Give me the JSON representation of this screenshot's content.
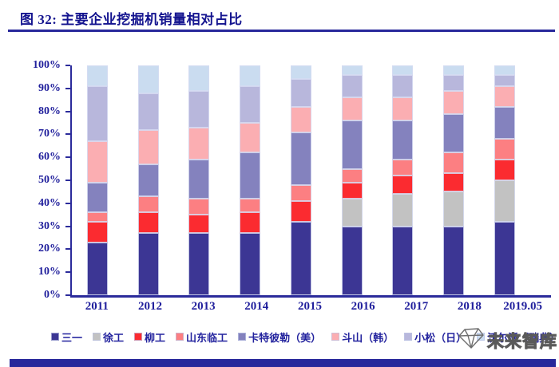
{
  "header": {
    "title": "图 32:  主要企业挖掘机销量相对占比"
  },
  "watermark": {
    "text": "未来智库",
    "icon": "gem-sketch-icon"
  },
  "colors": {
    "title_text": "#14148F",
    "axis_text": "#201F9C",
    "axis_line": "#2B2B9B",
    "rule": "#28289B"
  },
  "chart_data": {
    "type": "bar",
    "stacked": true,
    "percent_stacked": true,
    "grid": false,
    "legend_position": "bottom",
    "ylim": [
      0,
      100
    ],
    "ylabel": "",
    "xlabel": "",
    "y_tick_labels": [
      "100%",
      "90%",
      "80%",
      "70%",
      "60%",
      "50%",
      "40%",
      "30%",
      "20%",
      "10%",
      "0%"
    ],
    "categories": [
      "2011",
      "2012",
      "2013",
      "2014",
      "2015",
      "2016",
      "2017",
      "2018",
      "2019.05"
    ],
    "series": [
      {
        "key": "sany",
        "name": "三一",
        "color": "#3C3694",
        "values": [
          23,
          27,
          27,
          27,
          32,
          30,
          30,
          30,
          32
        ]
      },
      {
        "key": "xcmg",
        "name": "徐工",
        "color": "#C2C2C2",
        "values": [
          0,
          0,
          0,
          0,
          0,
          12,
          14,
          15,
          18
        ]
      },
      {
        "key": "liugong",
        "name": "柳工",
        "color": "#FB2B30",
        "values": [
          9,
          9,
          8,
          9,
          9,
          7,
          8,
          8,
          9
        ]
      },
      {
        "key": "sdlg",
        "name": "山东临工",
        "color": "#FC7F82",
        "values": [
          4,
          7,
          7,
          6,
          7,
          6,
          7,
          9,
          9
        ]
      },
      {
        "key": "caterpillar",
        "name": "卡特彼勒（美）",
        "color": "#8482BE",
        "values": [
          13,
          14,
          17,
          20,
          23,
          21,
          17,
          17,
          14
        ]
      },
      {
        "key": "doosan",
        "name": "斗山（韩）",
        "color": "#FBAEB2",
        "values": [
          18,
          15,
          14,
          13,
          11,
          10,
          10,
          10,
          9
        ]
      },
      {
        "key": "komatsu",
        "name": "小松（日）",
        "color": "#B8B7DC",
        "values": [
          24,
          16,
          16,
          16,
          12,
          10,
          10,
          7,
          5
        ]
      },
      {
        "key": "volvo",
        "name": "沃尔沃（瑞典）",
        "color": "#CADCF0",
        "values": [
          9,
          12,
          11,
          9,
          6,
          4,
          4,
          4,
          4
        ]
      }
    ]
  }
}
